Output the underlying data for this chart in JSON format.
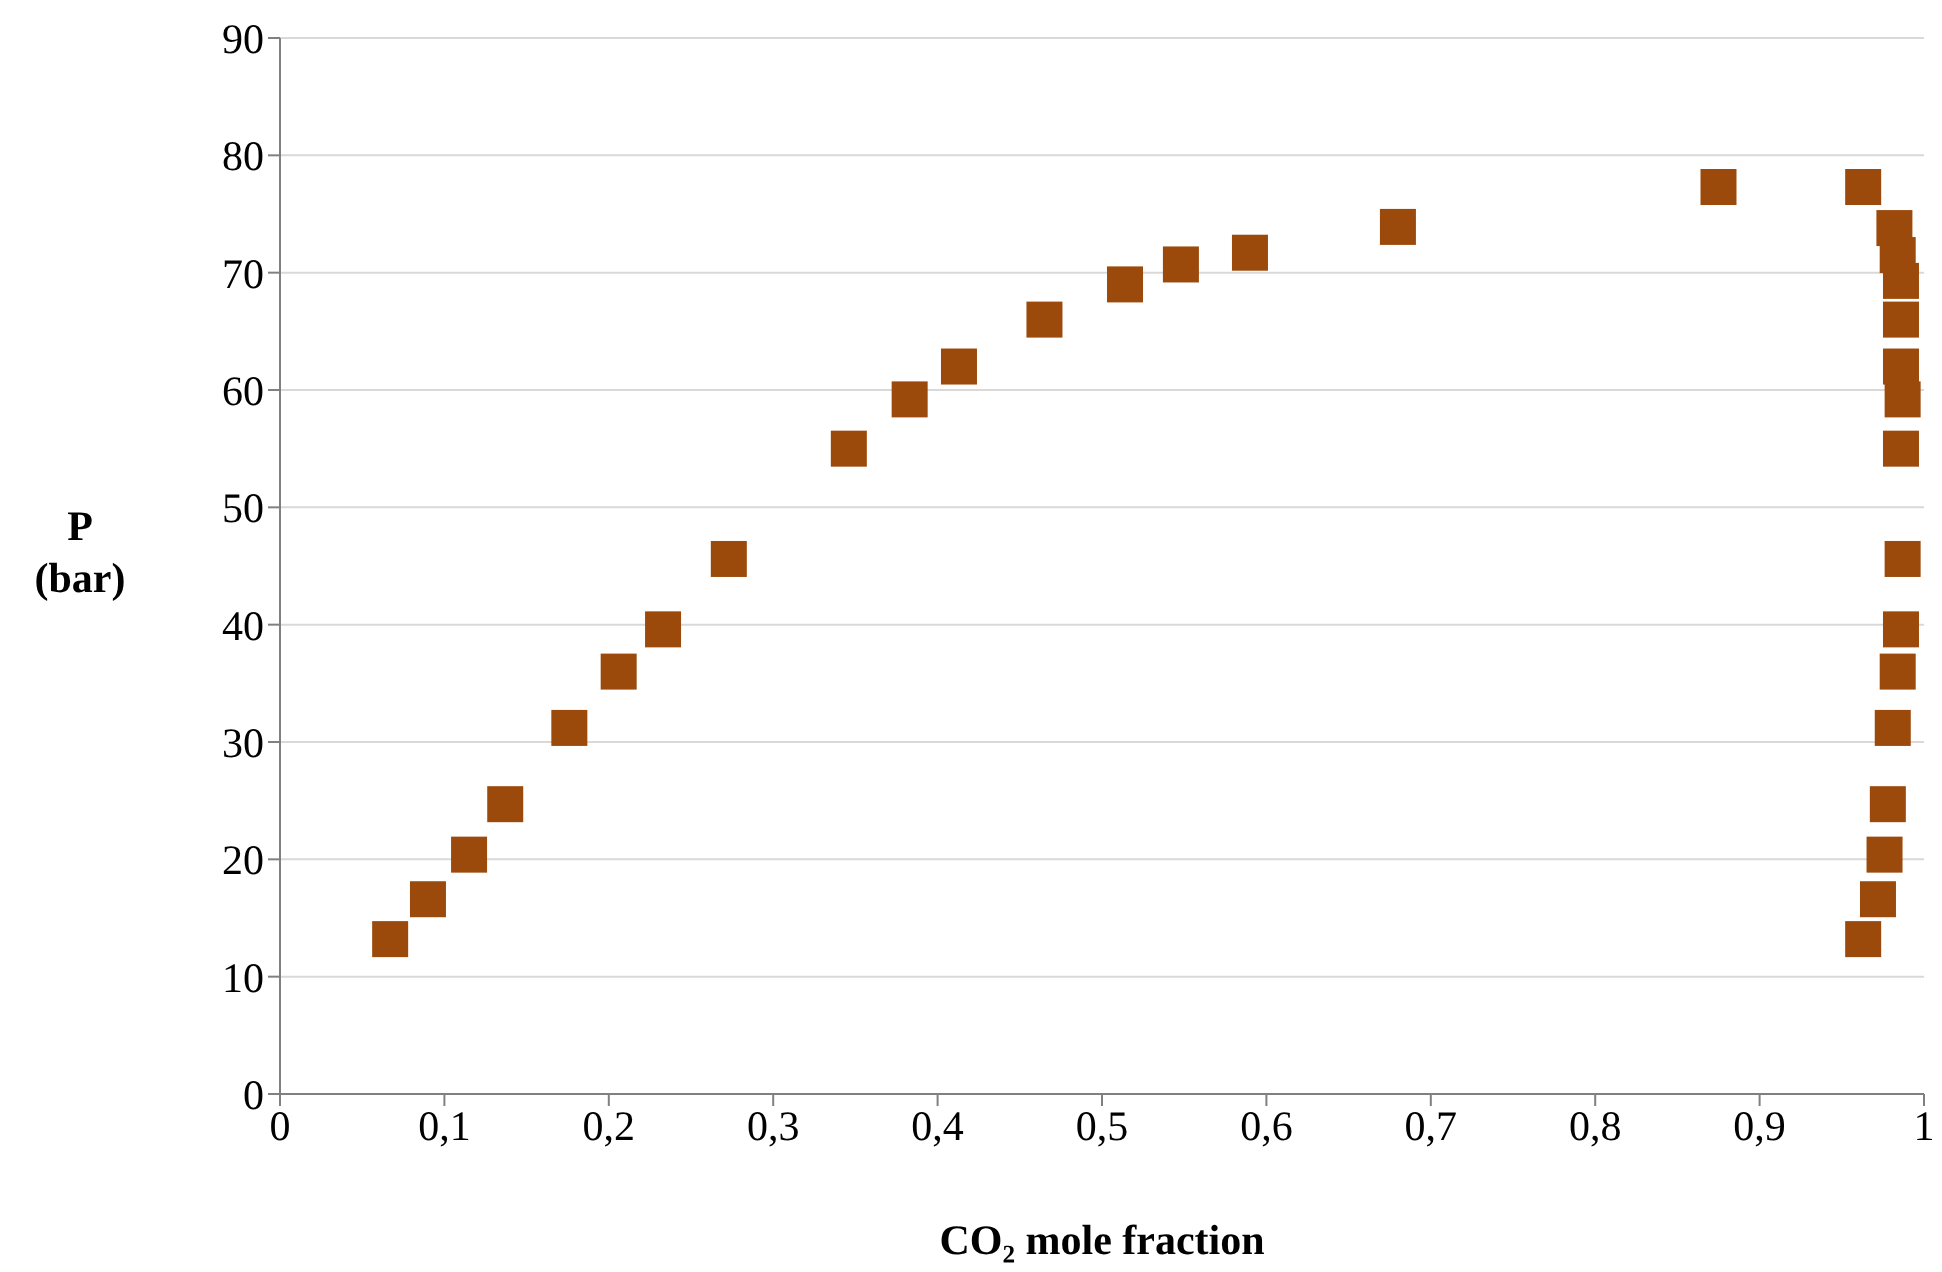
{
  "chart_data": {
    "type": "scatter",
    "xlabel": "CO₂ mole fraction",
    "ylabel": "P\n(bar)",
    "x": [
      0.067,
      0.09,
      0.115,
      0.137,
      0.176,
      0.206,
      0.233,
      0.273,
      0.346,
      0.383,
      0.413,
      0.465,
      0.514,
      0.548,
      0.59,
      0.68,
      0.875,
      0.963,
      0.982,
      0.984,
      0.986,
      0.986,
      0.986,
      0.987,
      0.986,
      0.987,
      0.986,
      0.984,
      0.981,
      0.978,
      0.976,
      0.972,
      0.963
    ],
    "series": [
      {
        "color": "#9c4a0c",
        "values": [
          13.2,
          16.6,
          20.4,
          24.7,
          31.2,
          36.0,
          39.6,
          45.6,
          55.0,
          59.2,
          62.0,
          66.0,
          69.0,
          70.7,
          71.7,
          73.9,
          77.3,
          77.3,
          73.8,
          71.5,
          69.3,
          66.0,
          62.0,
          59.2,
          55.0,
          45.6,
          39.6,
          36.0,
          31.2,
          24.7,
          20.4,
          16.6,
          13.2
        ]
      }
    ],
    "xlim": [
      0,
      1
    ],
    "xticks": [
      0,
      {
        "value": 0.1,
        "label": "0,1"
      },
      {
        "value": 0.2,
        "label": "0,2"
      },
      {
        "value": 0.3,
        "label": "0,3"
      },
      {
        "value": 0.4,
        "label": "0,4"
      },
      {
        "value": 0.5,
        "label": "0,5"
      },
      {
        "value": 0.6,
        "label": "0,6"
      },
      {
        "value": 0.7,
        "label": "0,7"
      },
      {
        "value": 0.8,
        "label": "0,8"
      },
      {
        "value": 0.9,
        "label": "0,9"
      },
      1
    ],
    "ylim": [
      0,
      90
    ],
    "yticks": [
      0,
      10,
      20,
      30,
      40,
      50,
      60,
      70,
      80,
      90
    ],
    "grid": "y",
    "marker": "square"
  }
}
